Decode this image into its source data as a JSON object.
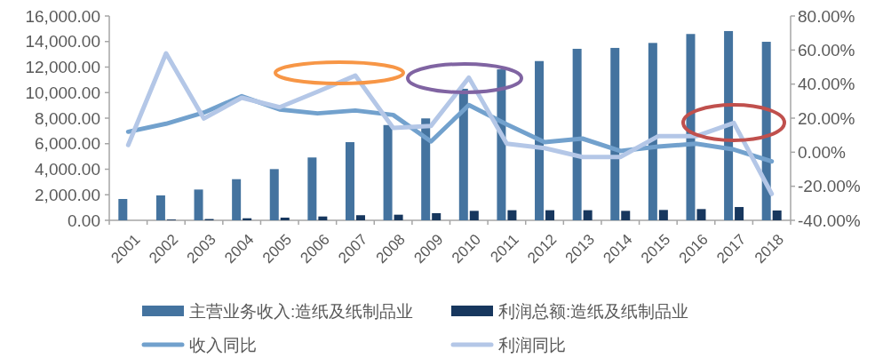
{
  "chart_data": {
    "type": "bar",
    "categories": [
      "2001",
      "2002",
      "2003",
      "2004",
      "2005",
      "2006",
      "2007",
      "2008",
      "2009",
      "2010",
      "2011",
      "2012",
      "2013",
      "2014",
      "2015",
      "2016",
      "2017",
      "2018"
    ],
    "series": [
      {
        "name": "主营业务收入:造纸及纸制品业",
        "color": "#44739f",
        "values": [
          1670,
          1950,
          2410,
          3220,
          4010,
          4920,
          6120,
          7460,
          7980,
          10300,
          11820,
          12470,
          13430,
          13500,
          13890,
          14590,
          14820,
          13980
        ]
      },
      {
        "name": "利润总额:造纸及纸制品业",
        "color": "#17375e",
        "values": [
          null,
          60,
          100,
          160,
          210,
          300,
          400,
          440,
          560,
          740,
          790,
          790,
          790,
          740,
          810,
          880,
          1040,
          770
        ]
      },
      {
        "name": "收入同比",
        "type": "line",
        "axis": "y2",
        "color": "#72a1cd",
        "values": [
          12.0,
          16.7,
          23.3,
          32.9,
          25.1,
          22.8,
          24.5,
          21.9,
          6.3,
          27.7,
          16.3,
          5.9,
          8.0,
          0.7,
          3.3,
          5.0,
          1.6,
          -5.4
        ]
      },
      {
        "name": "利润同比",
        "type": "line",
        "axis": "y2",
        "color": "#b4c7e7",
        "values": [
          4.2,
          58.1,
          19.8,
          32.0,
          26.4,
          35.5,
          45.0,
          14.3,
          15.5,
          43.8,
          5.0,
          2.4,
          -2.8,
          -2.8,
          9.4,
          9.4,
          17.2,
          -24.5
        ]
      }
    ],
    "ylim": [
      0,
      16000
    ],
    "yticks": [
      {
        "value": 0,
        "label": "0.00"
      },
      {
        "value": 2000,
        "label": "2,000.00"
      },
      {
        "value": 4000,
        "label": "4,000.00"
      },
      {
        "value": 6000,
        "label": "6,000.00"
      },
      {
        "value": 8000,
        "label": "8,000.00"
      },
      {
        "value": 10000,
        "label": "10,000.00"
      },
      {
        "value": 12000,
        "label": "12,000.00"
      },
      {
        "value": 14000,
        "label": "14,000.00"
      },
      {
        "value": 16000,
        "label": "16,000.00"
      }
    ],
    "y2lim": [
      -40,
      80
    ],
    "y2ticks": [
      {
        "value": -40,
        "label": "-40.00%"
      },
      {
        "value": -20,
        "label": "-20.00%"
      },
      {
        "value": 0,
        "label": "0.00%"
      },
      {
        "value": 20,
        "label": "20.00%"
      },
      {
        "value": 40,
        "label": "40.00%"
      },
      {
        "value": 60,
        "label": "60.00%"
      },
      {
        "value": 80,
        "label": "80.00%"
      }
    ],
    "legend": "bottom",
    "grid": false
  }
}
